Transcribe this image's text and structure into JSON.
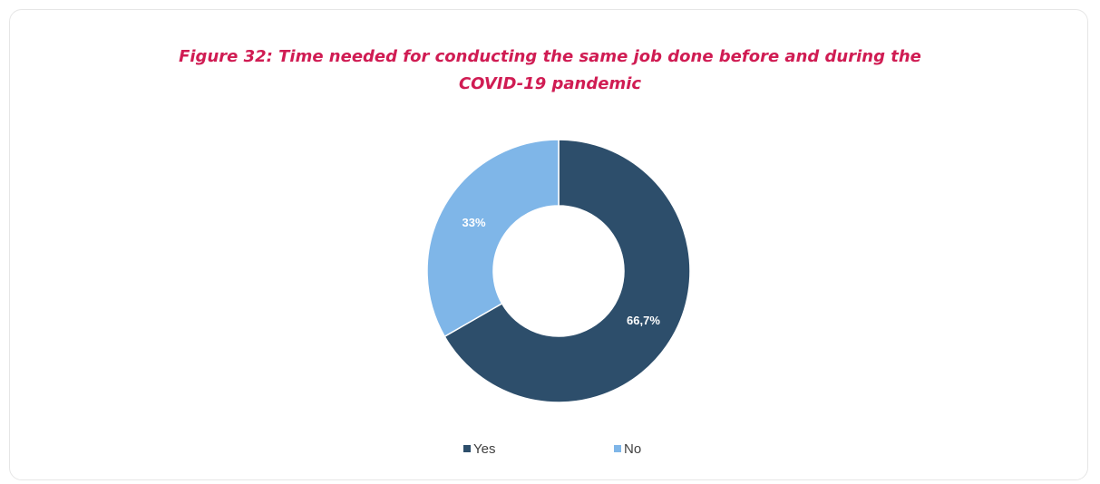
{
  "chart_data": {
    "type": "pie",
    "variant": "donut",
    "title_lines": [
      "Figure 32: Time needed for conducting the same job done before and during the",
      "COVID-19 pandemic"
    ],
    "slices": [
      {
        "label": "Yes",
        "value": 66.7,
        "data_label": "66,7%",
        "color": "#2d4e6b"
      },
      {
        "label": "No",
        "value": 33.3,
        "data_label": "33%",
        "color": "#7fb6e8"
      }
    ],
    "legend": {
      "position": "bottom",
      "entries": [
        "Yes",
        "No"
      ]
    }
  }
}
